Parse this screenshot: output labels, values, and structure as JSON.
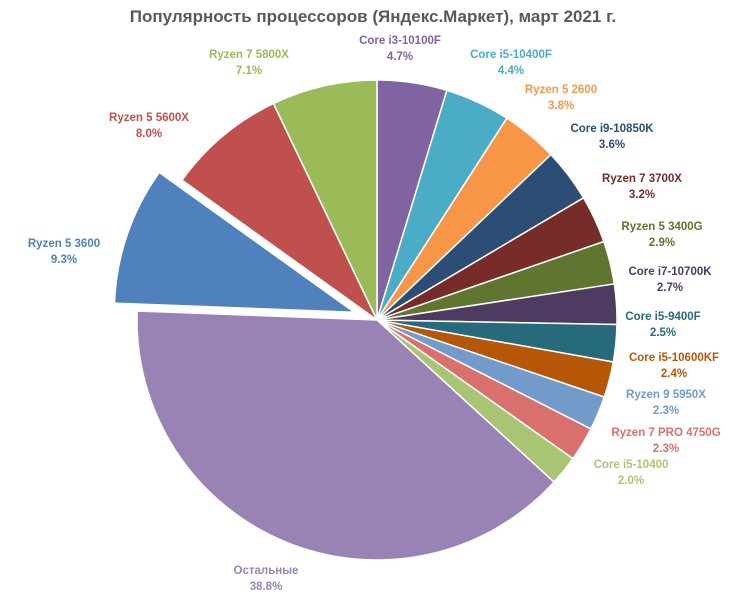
{
  "chart_data": {
    "type": "pie",
    "title": "Популярность процессоров (Яндекс.Маркет), март 2021 г.",
    "start_angle_deg": 0,
    "direction": "clockwise",
    "exploded": [
      "Ryzen 5 3600"
    ],
    "slices": [
      {
        "label": "Core i3-10100F",
        "value": 4.7,
        "display": "4.7%",
        "color": "#8064a2"
      },
      {
        "label": "Core i5-10400F",
        "value": 4.4,
        "display": "4.4%",
        "color": "#4bacc6"
      },
      {
        "label": "Ryzen 5 2600",
        "value": 3.8,
        "display": "3.8%",
        "color": "#f79646"
      },
      {
        "label": "Core i9-10850K",
        "value": 3.6,
        "display": "3.6%",
        "color": "#2c4d75"
      },
      {
        "label": "Ryzen 7 3700X",
        "value": 3.2,
        "display": "3.2%",
        "color": "#772c2a"
      },
      {
        "label": "Ryzen 5 3400G",
        "value": 2.9,
        "display": "2.9%",
        "color": "#5f7530"
      },
      {
        "label": "Core i7-10700K",
        "value": 2.7,
        "display": "2.7%",
        "color": "#4d3b62"
      },
      {
        "label": "Core i5-9400F",
        "value": 2.5,
        "display": "2.5%",
        "color": "#276a7c"
      },
      {
        "label": "Core i5-10600KF",
        "value": 2.4,
        "display": "2.4%",
        "color": "#b65708"
      },
      {
        "label": "Ryzen 9 5950X",
        "value": 2.3,
        "display": "2.3%",
        "color": "#729aca"
      },
      {
        "label": "Ryzen 7 PRO 4750G",
        "value": 2.3,
        "display": "2.3%",
        "color": "#d9706e"
      },
      {
        "label": "Core i5-10400",
        "value": 2.0,
        "display": "2.0%",
        "color": "#a9c574"
      },
      {
        "label": "Остальные",
        "value": 38.8,
        "display": "38.8%",
        "color": "#9983b5"
      },
      {
        "label": "Ryzen 5 3600",
        "value": 9.3,
        "display": "9.3%",
        "color": "#4f81bd"
      },
      {
        "label": "Ryzen 5 5600X",
        "value": 8.0,
        "display": "8.0%",
        "color": "#c0504d"
      },
      {
        "label": "Ryzen 7 5800X",
        "value": 7.1,
        "display": "7.1%",
        "color": "#9bbb59"
      }
    ]
  }
}
